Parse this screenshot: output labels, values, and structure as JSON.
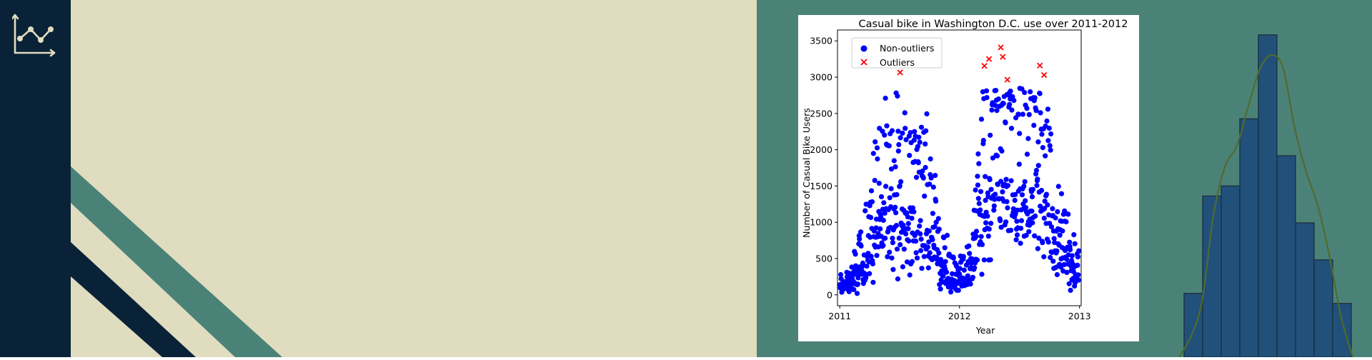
{
  "colors": {
    "sidebar": "#0a2237",
    "left_panel": "#e0dcbf",
    "right_panel": "#4b8278",
    "stripe_teal": "#4b8278",
    "stripe_navy": "#0a2237",
    "logo": "#e0dcbf",
    "non_outliers": "#0000ff",
    "outliers": "#ff0000",
    "hist_fill": "#21507a",
    "hist_edge": "#1a2a3a",
    "kde_line": "#4f6b2c"
  },
  "icons": {
    "logo": "line-chart-icon"
  },
  "chart_data": [
    {
      "type": "scatter",
      "title": "Casual bike in Washington D.C. use over 2011-2012",
      "xlabel": "Year",
      "ylabel": "Number of Casual Bike Users",
      "xlim": [
        "2010-12-25",
        "2013-01-06"
      ],
      "ylim": [
        -150,
        3650
      ],
      "xticks": [
        "2011",
        "2012",
        "2013"
      ],
      "yticks": [
        0,
        500,
        1000,
        1500,
        2000,
        2500,
        3000,
        3500
      ],
      "legend": {
        "position": "top-left",
        "entries": [
          "Non-outliers",
          "Outliers"
        ]
      },
      "grid": false,
      "series": [
        {
          "name": "Non-outliers",
          "marker": "circle",
          "color": "#0000ff",
          "trend": [
            [
              "2011-01-01",
              120,
              70
            ],
            [
              "2011-02-01",
              160,
              100
            ],
            [
              "2011-03-01",
              350,
              220
            ],
            [
              "2011-04-01",
              700,
              450
            ],
            [
              "2011-05-01",
              1100,
              500
            ],
            [
              "2011-06-01",
              1300,
              550
            ],
            [
              "2011-07-01",
              1200,
              550
            ],
            [
              "2011-08-01",
              1100,
              500
            ],
            [
              "2011-09-01",
              1000,
              500
            ],
            [
              "2011-10-01",
              900,
              500
            ],
            [
              "2011-11-01",
              500,
              300
            ],
            [
              "2011-12-01",
              250,
              150
            ],
            [
              "2012-01-01",
              200,
              120
            ],
            [
              "2012-02-01",
              300,
              180
            ],
            [
              "2012-03-01",
              1000,
              600
            ],
            [
              "2012-04-01",
              1500,
              650
            ],
            [
              "2012-05-01",
              1600,
              650
            ],
            [
              "2012-06-01",
              1400,
              550
            ],
            [
              "2012-07-01",
              1300,
              500
            ],
            [
              "2012-08-01",
              1400,
              550
            ],
            [
              "2012-09-01",
              1400,
              600
            ],
            [
              "2012-10-01",
              1200,
              550
            ],
            [
              "2012-11-01",
              700,
              350
            ],
            [
              "2012-12-01",
              400,
              250
            ],
            [
              "2012-12-31",
              300,
              150
            ]
          ],
          "estimated_daily_points": 718
        },
        {
          "name": "Outliers",
          "marker": "x",
          "color": "#ff0000",
          "points": [
            [
              "2011-07-04",
              3065
            ],
            [
              "2012-03-17",
              3155
            ],
            [
              "2012-03-31",
              3250
            ],
            [
              "2012-05-06",
              3410
            ],
            [
              "2012-05-12",
              3280
            ],
            [
              "2012-05-26",
              2965
            ],
            [
              "2012-09-02",
              3160
            ],
            [
              "2012-09-15",
              3030
            ]
          ]
        }
      ]
    },
    {
      "type": "bar",
      "subtype": "histogram",
      "title": "",
      "xlabel": "",
      "ylabel": "",
      "values": [
        0.19,
        0.48,
        0.51,
        0.71,
        0.96,
        0.6,
        0.4,
        0.29,
        0.16
      ],
      "kde": [
        0,
        0.06,
        0.17,
        0.43,
        0.57,
        0.63,
        0.75,
        0.86,
        0.9,
        0.86,
        0.68,
        0.55,
        0.45,
        0.3,
        0.12,
        0
      ]
    }
  ]
}
